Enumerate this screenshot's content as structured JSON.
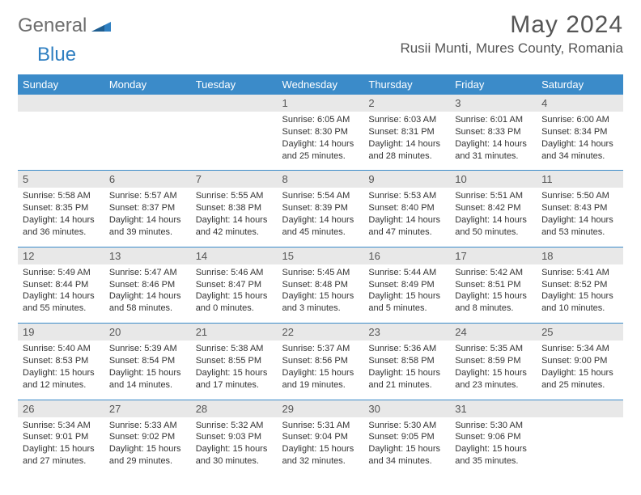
{
  "logo": {
    "general": "General",
    "blue": "Blue"
  },
  "title": "May 2024",
  "location": "Rusii Munti, Mures County, Romania",
  "colors": {
    "header_bg": "#3b8bc9",
    "header_text": "#ffffff",
    "daynum_bg": "#e8e8e8",
    "border": "#3b8bc9",
    "text": "#333333",
    "title_text": "#555555"
  },
  "weekdays": [
    "Sunday",
    "Monday",
    "Tuesday",
    "Wednesday",
    "Thursday",
    "Friday",
    "Saturday"
  ],
  "weeks": [
    [
      {
        "n": "",
        "sr": "",
        "ss": "",
        "dl": ""
      },
      {
        "n": "",
        "sr": "",
        "ss": "",
        "dl": ""
      },
      {
        "n": "",
        "sr": "",
        "ss": "",
        "dl": ""
      },
      {
        "n": "1",
        "sr": "Sunrise: 6:05 AM",
        "ss": "Sunset: 8:30 PM",
        "dl": "Daylight: 14 hours and 25 minutes."
      },
      {
        "n": "2",
        "sr": "Sunrise: 6:03 AM",
        "ss": "Sunset: 8:31 PM",
        "dl": "Daylight: 14 hours and 28 minutes."
      },
      {
        "n": "3",
        "sr": "Sunrise: 6:01 AM",
        "ss": "Sunset: 8:33 PM",
        "dl": "Daylight: 14 hours and 31 minutes."
      },
      {
        "n": "4",
        "sr": "Sunrise: 6:00 AM",
        "ss": "Sunset: 8:34 PM",
        "dl": "Daylight: 14 hours and 34 minutes."
      }
    ],
    [
      {
        "n": "5",
        "sr": "Sunrise: 5:58 AM",
        "ss": "Sunset: 8:35 PM",
        "dl": "Daylight: 14 hours and 36 minutes."
      },
      {
        "n": "6",
        "sr": "Sunrise: 5:57 AM",
        "ss": "Sunset: 8:37 PM",
        "dl": "Daylight: 14 hours and 39 minutes."
      },
      {
        "n": "7",
        "sr": "Sunrise: 5:55 AM",
        "ss": "Sunset: 8:38 PM",
        "dl": "Daylight: 14 hours and 42 minutes."
      },
      {
        "n": "8",
        "sr": "Sunrise: 5:54 AM",
        "ss": "Sunset: 8:39 PM",
        "dl": "Daylight: 14 hours and 45 minutes."
      },
      {
        "n": "9",
        "sr": "Sunrise: 5:53 AM",
        "ss": "Sunset: 8:40 PM",
        "dl": "Daylight: 14 hours and 47 minutes."
      },
      {
        "n": "10",
        "sr": "Sunrise: 5:51 AM",
        "ss": "Sunset: 8:42 PM",
        "dl": "Daylight: 14 hours and 50 minutes."
      },
      {
        "n": "11",
        "sr": "Sunrise: 5:50 AM",
        "ss": "Sunset: 8:43 PM",
        "dl": "Daylight: 14 hours and 53 minutes."
      }
    ],
    [
      {
        "n": "12",
        "sr": "Sunrise: 5:49 AM",
        "ss": "Sunset: 8:44 PM",
        "dl": "Daylight: 14 hours and 55 minutes."
      },
      {
        "n": "13",
        "sr": "Sunrise: 5:47 AM",
        "ss": "Sunset: 8:46 PM",
        "dl": "Daylight: 14 hours and 58 minutes."
      },
      {
        "n": "14",
        "sr": "Sunrise: 5:46 AM",
        "ss": "Sunset: 8:47 PM",
        "dl": "Daylight: 15 hours and 0 minutes."
      },
      {
        "n": "15",
        "sr": "Sunrise: 5:45 AM",
        "ss": "Sunset: 8:48 PM",
        "dl": "Daylight: 15 hours and 3 minutes."
      },
      {
        "n": "16",
        "sr": "Sunrise: 5:44 AM",
        "ss": "Sunset: 8:49 PM",
        "dl": "Daylight: 15 hours and 5 minutes."
      },
      {
        "n": "17",
        "sr": "Sunrise: 5:42 AM",
        "ss": "Sunset: 8:51 PM",
        "dl": "Daylight: 15 hours and 8 minutes."
      },
      {
        "n": "18",
        "sr": "Sunrise: 5:41 AM",
        "ss": "Sunset: 8:52 PM",
        "dl": "Daylight: 15 hours and 10 minutes."
      }
    ],
    [
      {
        "n": "19",
        "sr": "Sunrise: 5:40 AM",
        "ss": "Sunset: 8:53 PM",
        "dl": "Daylight: 15 hours and 12 minutes."
      },
      {
        "n": "20",
        "sr": "Sunrise: 5:39 AM",
        "ss": "Sunset: 8:54 PM",
        "dl": "Daylight: 15 hours and 14 minutes."
      },
      {
        "n": "21",
        "sr": "Sunrise: 5:38 AM",
        "ss": "Sunset: 8:55 PM",
        "dl": "Daylight: 15 hours and 17 minutes."
      },
      {
        "n": "22",
        "sr": "Sunrise: 5:37 AM",
        "ss": "Sunset: 8:56 PM",
        "dl": "Daylight: 15 hours and 19 minutes."
      },
      {
        "n": "23",
        "sr": "Sunrise: 5:36 AM",
        "ss": "Sunset: 8:58 PM",
        "dl": "Daylight: 15 hours and 21 minutes."
      },
      {
        "n": "24",
        "sr": "Sunrise: 5:35 AM",
        "ss": "Sunset: 8:59 PM",
        "dl": "Daylight: 15 hours and 23 minutes."
      },
      {
        "n": "25",
        "sr": "Sunrise: 5:34 AM",
        "ss": "Sunset: 9:00 PM",
        "dl": "Daylight: 15 hours and 25 minutes."
      }
    ],
    [
      {
        "n": "26",
        "sr": "Sunrise: 5:34 AM",
        "ss": "Sunset: 9:01 PM",
        "dl": "Daylight: 15 hours and 27 minutes."
      },
      {
        "n": "27",
        "sr": "Sunrise: 5:33 AM",
        "ss": "Sunset: 9:02 PM",
        "dl": "Daylight: 15 hours and 29 minutes."
      },
      {
        "n": "28",
        "sr": "Sunrise: 5:32 AM",
        "ss": "Sunset: 9:03 PM",
        "dl": "Daylight: 15 hours and 30 minutes."
      },
      {
        "n": "29",
        "sr": "Sunrise: 5:31 AM",
        "ss": "Sunset: 9:04 PM",
        "dl": "Daylight: 15 hours and 32 minutes."
      },
      {
        "n": "30",
        "sr": "Sunrise: 5:30 AM",
        "ss": "Sunset: 9:05 PM",
        "dl": "Daylight: 15 hours and 34 minutes."
      },
      {
        "n": "31",
        "sr": "Sunrise: 5:30 AM",
        "ss": "Sunset: 9:06 PM",
        "dl": "Daylight: 15 hours and 35 minutes."
      },
      {
        "n": "",
        "sr": "",
        "ss": "",
        "dl": ""
      }
    ]
  ]
}
